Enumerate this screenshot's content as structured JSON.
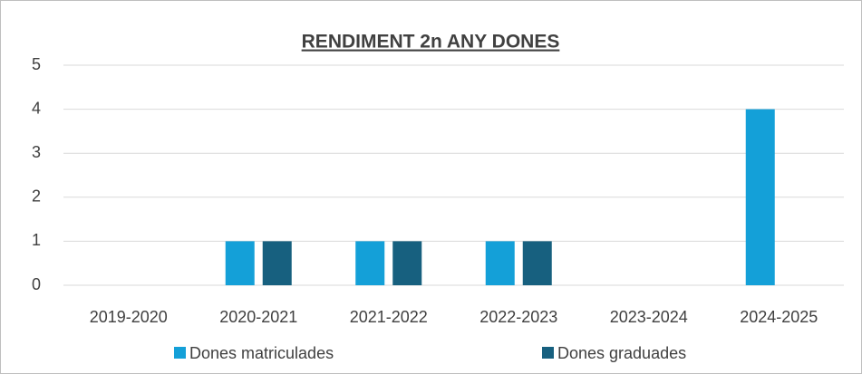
{
  "chart_data": {
    "type": "bar",
    "title": "RENDIMENT 2n ANY DONES",
    "categories": [
      "2019-2020",
      "2020-2021",
      "2021-2022",
      "2022-2023",
      "2023-2024",
      "2024-2025"
    ],
    "series": [
      {
        "name": "Dones matriculades",
        "color": "#14a0d8",
        "values": [
          0,
          1,
          1,
          1,
          0,
          4
        ]
      },
      {
        "name": "Dones graduades",
        "color": "#17607f",
        "values": [
          0,
          1,
          1,
          1,
          0,
          0
        ]
      }
    ],
    "ylim": [
      0,
      5
    ],
    "yticks": [
      0,
      1,
      2,
      3,
      4,
      5
    ],
    "grid": true,
    "legend": "bottom"
  }
}
